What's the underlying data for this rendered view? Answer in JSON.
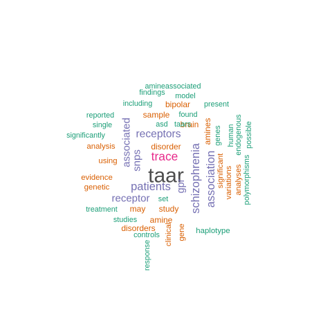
{
  "colors": {
    "green": "#1b9e77",
    "orange": "#d95f02",
    "purple": "#7570b3",
    "magenta": "#e7298a",
    "gray": "#4d4d4d"
  },
  "words": [
    {
      "id": "taar",
      "text": "taar",
      "color": "gray",
      "size": 1.0,
      "vertical": false
    },
    {
      "id": "trace",
      "text": "trace",
      "color": "magenta",
      "size": 0.58,
      "vertical": false
    },
    {
      "id": "schizophrenia",
      "text": "schizophrenia",
      "color": "purple",
      "size": 0.55,
      "vertical": true
    },
    {
      "id": "association",
      "text": "association",
      "color": "purple",
      "size": 0.55,
      "vertical": true
    },
    {
      "id": "patients",
      "text": "patients",
      "color": "purple",
      "size": 0.55,
      "vertical": false
    },
    {
      "id": "receptors",
      "text": "receptors",
      "color": "purple",
      "size": 0.52,
      "vertical": false
    },
    {
      "id": "receptor",
      "text": "receptor",
      "color": "purple",
      "size": 0.5,
      "vertical": false
    },
    {
      "id": "associated",
      "text": "associated",
      "color": "purple",
      "size": 0.5,
      "vertical": true
    },
    {
      "id": "snps",
      "text": "snps",
      "color": "purple",
      "size": 0.5,
      "vertical": true
    },
    {
      "id": "gpr",
      "text": "gpr",
      "color": "purple",
      "size": 0.48,
      "vertical": true
    },
    {
      "id": "disorder",
      "text": "disorder",
      "color": "orange",
      "size": 0.4,
      "vertical": false
    },
    {
      "id": "brain",
      "text": "brain",
      "color": "orange",
      "size": 0.4,
      "vertical": false
    },
    {
      "id": "bipolar",
      "text": "bipolar",
      "color": "orange",
      "size": 0.4,
      "vertical": false
    },
    {
      "id": "sample",
      "text": "sample",
      "color": "orange",
      "size": 0.4,
      "vertical": false
    },
    {
      "id": "may",
      "text": "may",
      "color": "orange",
      "size": 0.4,
      "vertical": false
    },
    {
      "id": "study",
      "text": "study",
      "color": "orange",
      "size": 0.4,
      "vertical": false
    },
    {
      "id": "amine",
      "text": "amine",
      "color": "orange",
      "size": 0.4,
      "vertical": false
    },
    {
      "id": "disorders",
      "text": "disorders",
      "color": "orange",
      "size": 0.4,
      "vertical": false
    },
    {
      "id": "analysis",
      "text": "analysis",
      "color": "orange",
      "size": 0.38,
      "vertical": false
    },
    {
      "id": "using",
      "text": "using",
      "color": "orange",
      "size": 0.38,
      "vertical": false
    },
    {
      "id": "evidence",
      "text": "evidence",
      "color": "orange",
      "size": 0.38,
      "vertical": false
    },
    {
      "id": "genetic",
      "text": "genetic",
      "color": "orange",
      "size": 0.38,
      "vertical": false
    },
    {
      "id": "amines",
      "text": "amines",
      "color": "orange",
      "size": 0.4,
      "vertical": true
    },
    {
      "id": "significant",
      "text": "significant",
      "color": "orange",
      "size": 0.38,
      "vertical": true
    },
    {
      "id": "analyses",
      "text": "analyses",
      "color": "orange",
      "size": 0.38,
      "vertical": true
    },
    {
      "id": "variations",
      "text": "variations",
      "color": "orange",
      "size": 0.38,
      "vertical": true
    },
    {
      "id": "clinical",
      "text": "clinical",
      "color": "orange",
      "size": 0.38,
      "vertical": true
    },
    {
      "id": "gene",
      "text": "gene",
      "color": "orange",
      "size": 0.38,
      "vertical": true
    },
    {
      "id": "amineassociated",
      "text": "amineassociated",
      "color": "green",
      "size": 0.36,
      "vertical": false
    },
    {
      "id": "findings",
      "text": "findings",
      "color": "green",
      "size": 0.36,
      "vertical": false
    },
    {
      "id": "model",
      "text": "model",
      "color": "green",
      "size": 0.36,
      "vertical": false
    },
    {
      "id": "including",
      "text": "including",
      "color": "green",
      "size": 0.36,
      "vertical": false
    },
    {
      "id": "present",
      "text": "present",
      "color": "green",
      "size": 0.36,
      "vertical": false
    },
    {
      "id": "reported",
      "text": "reported",
      "color": "green",
      "size": 0.36,
      "vertical": false
    },
    {
      "id": "found",
      "text": "found",
      "color": "green",
      "size": 0.36,
      "vertical": false
    },
    {
      "id": "single",
      "text": "single",
      "color": "green",
      "size": 0.36,
      "vertical": false
    },
    {
      "id": "asd",
      "text": "asd",
      "color": "green",
      "size": 0.36,
      "vertical": false
    },
    {
      "id": "taars",
      "text": "taars",
      "color": "green",
      "size": 0.36,
      "vertical": false
    },
    {
      "id": "significantly",
      "text": "significantly",
      "color": "green",
      "size": 0.36,
      "vertical": false
    },
    {
      "id": "set",
      "text": "set",
      "color": "green",
      "size": 0.36,
      "vertical": false
    },
    {
      "id": "treatment",
      "text": "treatment",
      "color": "green",
      "size": 0.36,
      "vertical": false
    },
    {
      "id": "studies",
      "text": "studies",
      "color": "green",
      "size": 0.36,
      "vertical": false
    },
    {
      "id": "controls",
      "text": "controls",
      "color": "green",
      "size": 0.36,
      "vertical": false
    },
    {
      "id": "haplotype",
      "text": "haplotype",
      "color": "green",
      "size": 0.38,
      "vertical": false
    },
    {
      "id": "genes",
      "text": "genes",
      "color": "green",
      "size": 0.36,
      "vertical": true
    },
    {
      "id": "human",
      "text": "human",
      "color": "green",
      "size": 0.36,
      "vertical": true
    },
    {
      "id": "endogenous",
      "text": "endogenous",
      "color": "green",
      "size": 0.36,
      "vertical": true
    },
    {
      "id": "possible",
      "text": "possible",
      "color": "green",
      "size": 0.36,
      "vertical": true
    },
    {
      "id": "polymorphisms",
      "text": "polymorphisms",
      "color": "green",
      "size": 0.36,
      "vertical": true
    },
    {
      "id": "response",
      "text": "response",
      "color": "green",
      "size": 0.36,
      "vertical": true
    }
  ]
}
